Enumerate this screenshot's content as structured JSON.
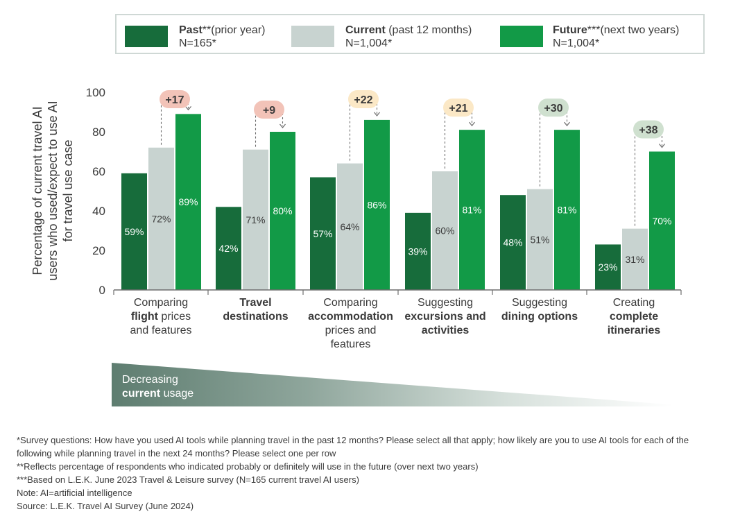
{
  "legend": {
    "past": {
      "name": "Past",
      "note": "**(prior year)",
      "n": "N=165*",
      "color": "#176c3b"
    },
    "current": {
      "name": "Current",
      "note": " (past 12 months)",
      "n": "N=1,004*",
      "color": "#c8d3d0"
    },
    "future": {
      "name": "Future",
      "note": "***(next two years)",
      "n": "N=1,004*",
      "color": "#129a47"
    }
  },
  "chart_data": {
    "type": "bar",
    "ylabel_lines": [
      "Percentage of current travel AI",
      "users who used/expect to use AI",
      "for travel use case"
    ],
    "ylim": [
      0,
      100
    ],
    "yticks": [
      "0",
      "20",
      "40",
      "60",
      "80",
      "100"
    ],
    "categories": [
      {
        "lines": [
          [
            "Comparing"
          ],
          [
            "flight",
            " prices"
          ],
          [
            "and features"
          ]
        ],
        "bold": [
          [
            false
          ],
          [
            true,
            false
          ],
          [
            false
          ]
        ]
      },
      {
        "lines": [
          [
            "Travel"
          ],
          [
            "destinations"
          ]
        ],
        "bold": [
          [
            true
          ],
          [
            true
          ]
        ]
      },
      {
        "lines": [
          [
            "Comparing"
          ],
          [
            "accommodation"
          ],
          [
            "prices and"
          ],
          [
            "features"
          ]
        ],
        "bold": [
          [
            false
          ],
          [
            true
          ],
          [
            false
          ],
          [
            false
          ]
        ]
      },
      {
        "lines": [
          [
            "Suggesting"
          ],
          [
            "excursions and"
          ],
          [
            "activities"
          ]
        ],
        "bold": [
          [
            false
          ],
          [
            true
          ],
          [
            true
          ]
        ]
      },
      {
        "lines": [
          [
            "Suggesting"
          ],
          [
            "dining options"
          ]
        ],
        "bold": [
          [
            false
          ],
          [
            true
          ]
        ]
      },
      {
        "lines": [
          [
            "Creating"
          ],
          [
            "complete"
          ],
          [
            "itineraries"
          ]
        ],
        "bold": [
          [
            false
          ],
          [
            true
          ],
          [
            true
          ]
        ]
      }
    ],
    "series": [
      {
        "name": "Past",
        "values": [
          59,
          42,
          57,
          39,
          48,
          23
        ],
        "labels": [
          "59%",
          "42%",
          "57%",
          "39%",
          "48%",
          "23%"
        ],
        "color": "#176c3b",
        "label_color": "#ffffff"
      },
      {
        "name": "Current",
        "values": [
          72,
          71,
          64,
          60,
          51,
          31
        ],
        "labels": [
          "72%",
          "71%",
          "64%",
          "60%",
          "51%",
          "31%"
        ],
        "color": "#c8d3d0",
        "label_color": "#3a3a3a"
      },
      {
        "name": "Future",
        "values": [
          89,
          80,
          86,
          81,
          81,
          70
        ],
        "labels": [
          "89%",
          "80%",
          "86%",
          "81%",
          "81%",
          "70%"
        ],
        "color": "#129a47",
        "label_color": "#ffffff"
      }
    ],
    "deltas": [
      {
        "label": "+17",
        "color": "#f2c3b8"
      },
      {
        "label": "+9",
        "color": "#f2c3b8"
      },
      {
        "label": "+22",
        "color": "#fbe8c6"
      },
      {
        "label": "+21",
        "color": "#fbe8c6"
      },
      {
        "label": "+30",
        "color": "#cfe0cf"
      },
      {
        "label": "+38",
        "color": "#cfe0cf"
      }
    ]
  },
  "gradient": {
    "line1": "Decreasing",
    "line2_bold": "current",
    "line2_rest": " usage"
  },
  "notes": [
    "*Survey questions: How have you used AI tools while planning travel in the past 12 months? Please select all that apply; how likely are you to use AI tools for each of the following while planning travel in the next 24 months? Please select one per row",
    "**Reflects percentage of respondents who indicated probably or definitely will use in the future (over next two years)",
    "***Based on L.E.K. June 2023 Travel & Leisure survey (N=165 current travel AI users)",
    "Note: AI=artificial intelligence",
    "Source: L.E.K. Travel AI Survey (June 2024)"
  ]
}
